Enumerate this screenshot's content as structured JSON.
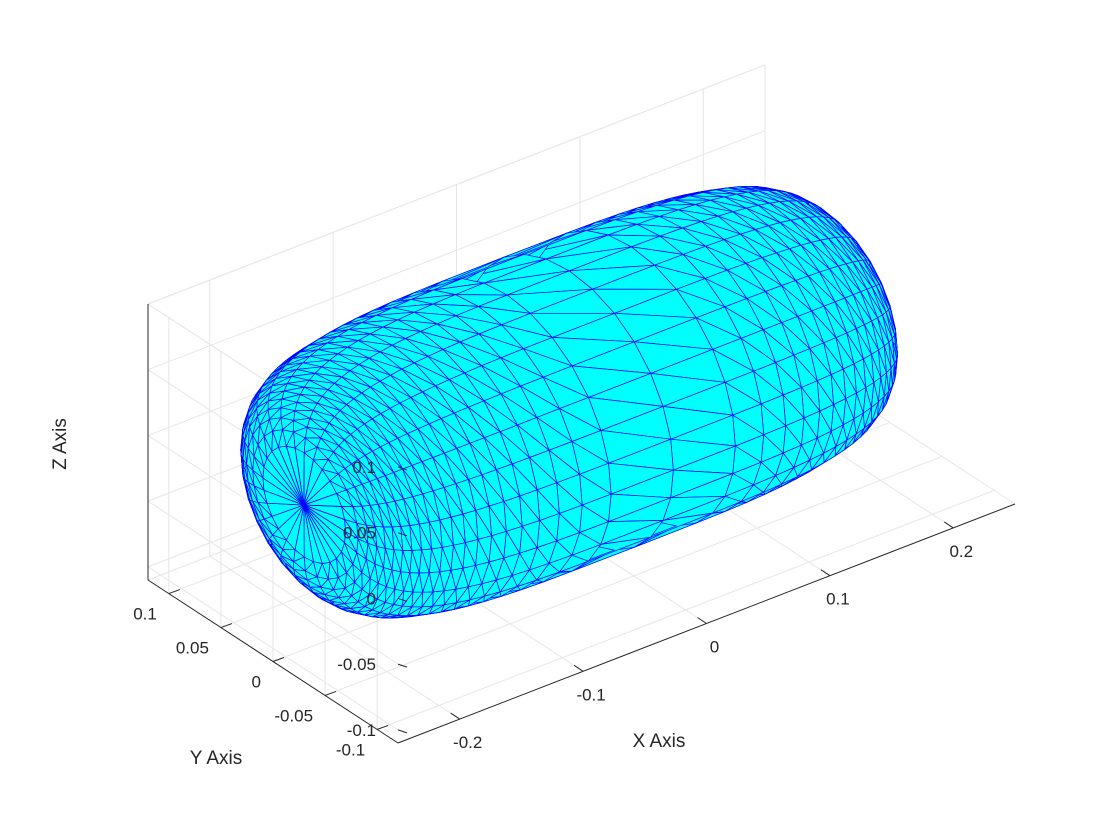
{
  "chart_data": {
    "type": "surface",
    "title": "",
    "xlabel": "X Axis",
    "ylabel": "Y Axis",
    "zlabel": "Z Axis",
    "x_ticks": [
      {
        "value": -0.2,
        "label": "-0.2"
      },
      {
        "value": -0.1,
        "label": "-0.1"
      },
      {
        "value": 0,
        "label": "0"
      },
      {
        "value": 0.1,
        "label": "0.1"
      },
      {
        "value": 0.2,
        "label": "0.2"
      }
    ],
    "y_ticks": [
      {
        "value": 0.1,
        "label": "0.1"
      },
      {
        "value": 0.05,
        "label": "0.05"
      },
      {
        "value": 0,
        "label": "0"
      },
      {
        "value": -0.05,
        "label": "-0.05"
      },
      {
        "value": -0.1,
        "label": "-0.1"
      }
    ],
    "z_ticks": [
      {
        "value": 0.1,
        "label": "0.1"
      },
      {
        "value": 0.05,
        "label": "0.05"
      },
      {
        "value": 0,
        "label": "0"
      },
      {
        "value": -0.05,
        "label": "-0.05"
      },
      {
        "value": -0.1,
        "label": "-0.1"
      }
    ],
    "xlim": [
      -0.25,
      0.25
    ],
    "ylim": [
      -0.12,
      0.12
    ],
    "zlim": [
      -0.11,
      0.1
    ],
    "grid": true,
    "box": "3d",
    "colors": {
      "face": "#00FFFF",
      "edge": "#0000FF",
      "axis": "#262626",
      "grid": "#E6E6E6"
    }
  }
}
